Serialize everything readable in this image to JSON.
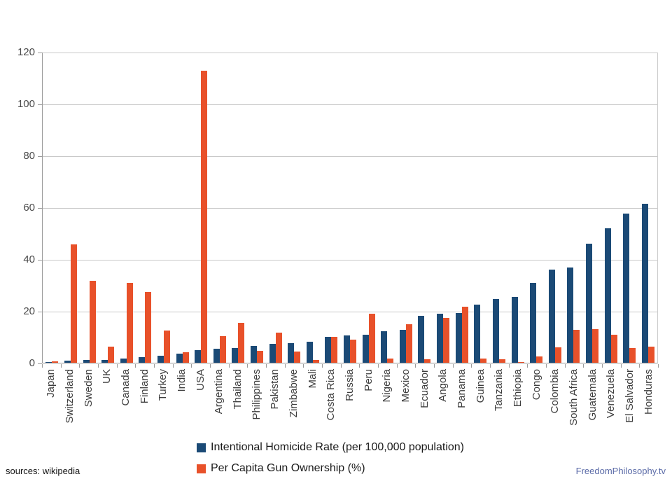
{
  "chart_data": {
    "type": "bar",
    "title": "",
    "xlabel": "",
    "ylabel": "",
    "ylim": [
      0,
      120
    ],
    "yticks": [
      0,
      20,
      40,
      60,
      80,
      100,
      120
    ],
    "grid": true,
    "legend_position": "bottom",
    "categories": [
      "Japan",
      "Switzerland",
      "Sweden",
      "UK",
      "Canada",
      "Finland",
      "Turkey",
      "India",
      "USA",
      "Argentina",
      "Thailand",
      "Philippines",
      "Pakistan",
      "Zimbabwe",
      "Mali",
      "Costa Rica",
      "Russia",
      "Peru",
      "Nigeria",
      "Mexico",
      "Ecuador",
      "Angola",
      "Panama",
      "Guinea",
      "Tanzania",
      "Ethiopia",
      "Congo",
      "Colombia",
      "South Africa",
      "Guatemala",
      "Venezuela",
      "El Salvador",
      "Honduras"
    ],
    "series": [
      {
        "name": "Intentional Homicide Rate (per 100,000 population)",
        "color": "#1B4A76",
        "values": [
          0.4,
          0.7,
          1.0,
          1.2,
          1.6,
          2.2,
          2.6,
          3.4,
          5.0,
          5.5,
          5.6,
          6.4,
          7.3,
          7.5,
          8.0,
          10.0,
          10.5,
          10.8,
          12.2,
          12.7,
          18.1,
          19.0,
          19.3,
          22.5,
          24.5,
          25.5,
          30.8,
          35.9,
          36.8,
          46.0,
          52.0,
          57.5,
          61.3
        ]
      },
      {
        "name": "Per Capita Gun Ownership (%)",
        "color": "#E8512A",
        "values": [
          0.6,
          45.7,
          31.6,
          6.2,
          30.8,
          27.3,
          12.5,
          4.0,
          112.6,
          10.2,
          15.5,
          4.7,
          11.5,
          4.4,
          1.1,
          9.9,
          8.9,
          18.8,
          1.5,
          15.0,
          1.3,
          17.3,
          21.7,
          1.6,
          1.4,
          0.4,
          2.5,
          5.9,
          12.7,
          13.1,
          10.7,
          5.8,
          6.2
        ]
      }
    ]
  },
  "footer": {
    "source": "sources: wikipedia",
    "brand": "FreedomPhilosophy.tv",
    "brand_color": "#5C6CA8"
  }
}
